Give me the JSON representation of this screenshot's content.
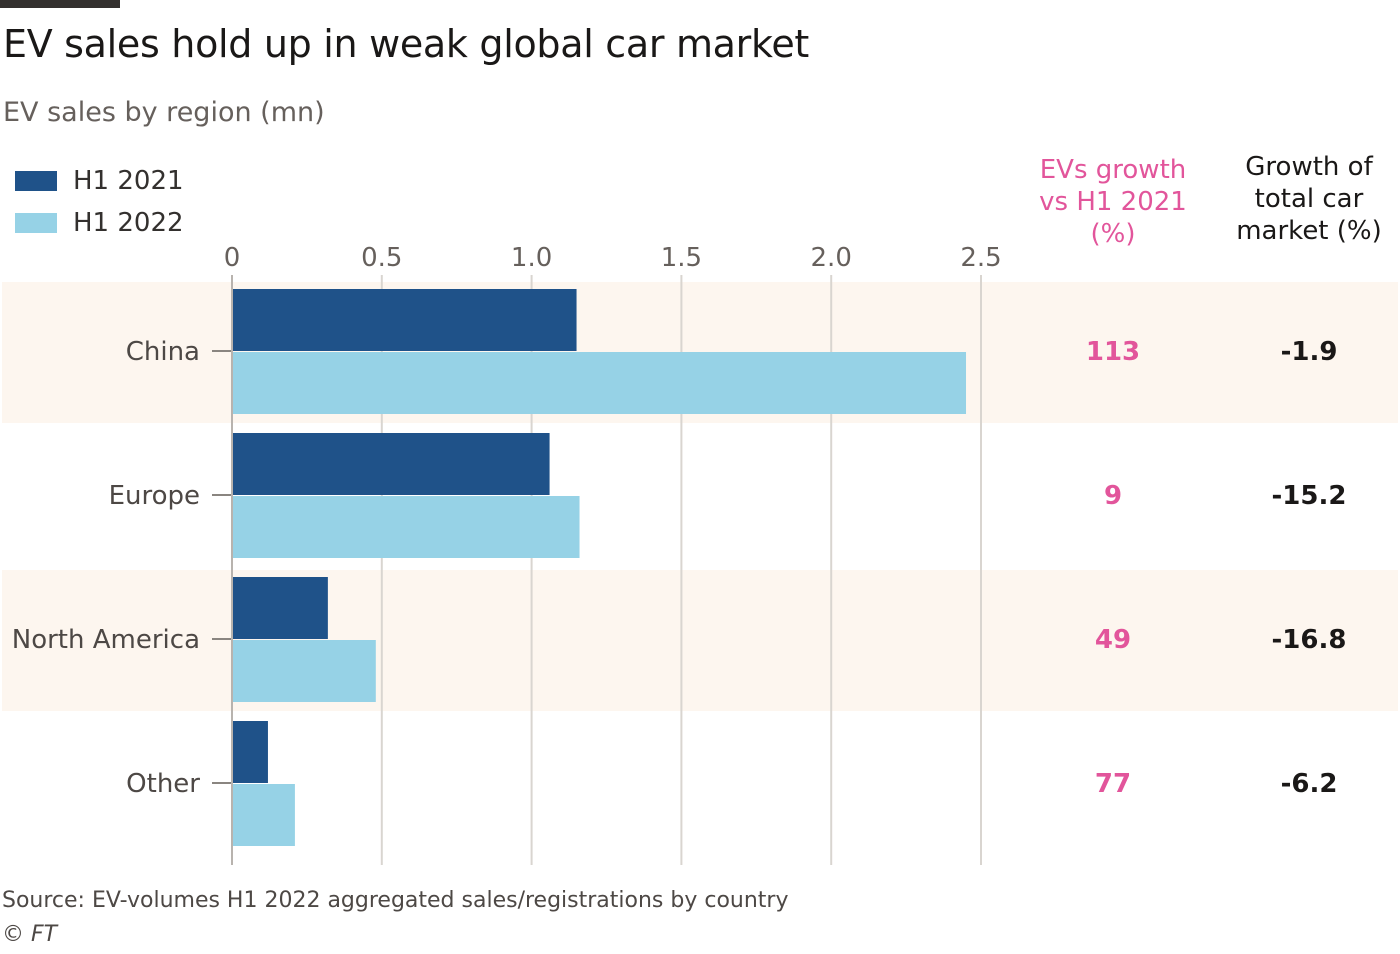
{
  "title": "EV sales hold up in weak global car market",
  "subtitle": "EV sales by region (mn)",
  "source": "Source: EV-volumes H1 2022 aggregated sales/registrations by country",
  "copyright": "© FT",
  "colors": {
    "h1_2021": "#1f5289",
    "h1_2022": "#96d2e6",
    "band": "#fdf6ef",
    "growth_accent": "#e2559b",
    "grid": "#d9d5d0"
  },
  "table_headers": {
    "ev_growth": [
      "EVs growth",
      "vs H1 2021",
      "(%)"
    ],
    "market_growth": [
      "Growth of",
      "total car",
      "market (%)"
    ]
  },
  "chart_data": {
    "type": "bar",
    "orientation": "horizontal",
    "categories": [
      "China",
      "Europe",
      "North America",
      "Other"
    ],
    "series": [
      {
        "name": "H1 2021",
        "values": [
          1.15,
          1.06,
          0.32,
          0.12
        ]
      },
      {
        "name": "H1 2022",
        "values": [
          2.45,
          1.16,
          0.48,
          0.21
        ]
      }
    ],
    "xlim": [
      0,
      2.5
    ],
    "xticks": [
      0,
      0.5,
      1.0,
      1.5,
      2.0,
      2.5
    ],
    "xtick_labels": [
      "0",
      "0.5",
      "1.0",
      "1.5",
      "2.0",
      "2.5"
    ],
    "grid": true,
    "legend": "top-left",
    "ev_growth_pct": [
      "113",
      "9",
      "49",
      "77"
    ],
    "market_growth_pct": [
      "-1.9",
      "-15.2",
      "-16.8",
      "-6.2"
    ]
  }
}
